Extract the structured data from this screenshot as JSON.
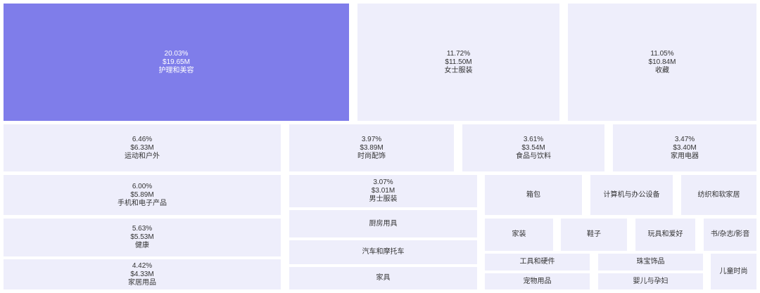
{
  "colors": {
    "highlight": "#7f7dea",
    "tile": "#eeeefb",
    "text": "#333333"
  },
  "chart_data": {
    "type": "treemap",
    "highlighted_index": 0,
    "items": [
      {
        "label": "护理和美容",
        "share": "20.03%",
        "value": "$19.65M",
        "value_m": 19.65
      },
      {
        "label": "女士服装",
        "share": "11.72%",
        "value": "$11.50M",
        "value_m": 11.5
      },
      {
        "label": "收藏",
        "share": "11.05%",
        "value": "$10.84M",
        "value_m": 10.84
      },
      {
        "label": "运动和户外",
        "share": "6.46%",
        "value": "$6.33M",
        "value_m": 6.33
      },
      {
        "label": "时尚配饰",
        "share": "3.97%",
        "value": "$3.89M",
        "value_m": 3.89
      },
      {
        "label": "食品与饮料",
        "share": "3.61%",
        "value": "$3.54M",
        "value_m": 3.54
      },
      {
        "label": "家用电器",
        "share": "3.47%",
        "value": "$3.40M",
        "value_m": 3.4
      },
      {
        "label": "手机和电子产品",
        "share": "6.00%",
        "value": "$5.89M",
        "value_m": 5.89
      },
      {
        "label": "男士服装",
        "share": "3.07%",
        "value": "$3.01M",
        "value_m": 3.01
      },
      {
        "label": "箱包"
      },
      {
        "label": "计算机与办公设备"
      },
      {
        "label": "纺织和软家居"
      },
      {
        "label": "健康",
        "share": "5.63%",
        "value": "$5.53M",
        "value_m": 5.53
      },
      {
        "label": "厨房用具"
      },
      {
        "label": "家装"
      },
      {
        "label": "鞋子"
      },
      {
        "label": "玩具和爱好"
      },
      {
        "label": "书/杂志/影音"
      },
      {
        "label": "汽车和摩托车"
      },
      {
        "label": "家居用品",
        "share": "4.42%",
        "value": "$4.33M",
        "value_m": 4.33
      },
      {
        "label": "工具和硬件"
      },
      {
        "label": "珠宝饰品"
      },
      {
        "label": "儿童时尚"
      },
      {
        "label": "家具"
      },
      {
        "label": "宠物用品"
      },
      {
        "label": "婴儿与孕妇"
      }
    ]
  }
}
